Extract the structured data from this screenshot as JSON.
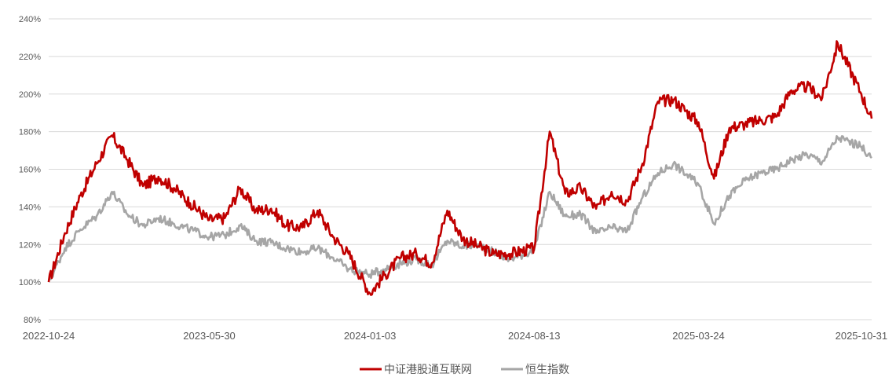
{
  "chart_data": {
    "type": "line",
    "title": "",
    "xlabel": "",
    "ylabel": "",
    "ylim": [
      80,
      240
    ],
    "y_unit": "%",
    "y_ticks": [
      80,
      100,
      120,
      140,
      160,
      180,
      200,
      220,
      240
    ],
    "y_tick_labels": [
      "80%",
      "100%",
      "120%",
      "140%",
      "160%",
      "180%",
      "200%",
      "220%",
      "240%"
    ],
    "x_tick_labels": [
      "2022-10-24",
      "2023-05-30",
      "2024-01-03",
      "2024-08-13",
      "2025-03-24",
      "2025-10-31"
    ],
    "grid": "horizontal",
    "legend_position": "bottom",
    "x": [
      "2022-10-24",
      "2022-11-15",
      "2022-12-06",
      "2022-12-28",
      "2023-01-18",
      "2023-02-08",
      "2023-03-01",
      "2023-03-22",
      "2023-04-12",
      "2023-05-04",
      "2023-05-30",
      "2023-06-20",
      "2023-07-11",
      "2023-08-01",
      "2023-08-22",
      "2023-09-12",
      "2023-10-03",
      "2023-10-24",
      "2023-11-14",
      "2023-12-05",
      "2024-01-03",
      "2024-01-24",
      "2024-02-14",
      "2024-03-06",
      "2024-03-27",
      "2024-04-17",
      "2024-05-08",
      "2024-05-29",
      "2024-06-19",
      "2024-07-10",
      "2024-08-13",
      "2024-09-03",
      "2024-09-24",
      "2024-10-15",
      "2024-11-05",
      "2024-11-26",
      "2024-12-17",
      "2025-01-07",
      "2025-01-28",
      "2025-02-18",
      "2025-03-24",
      "2025-04-14",
      "2025-05-05",
      "2025-05-26",
      "2025-06-16",
      "2025-07-07",
      "2025-07-28",
      "2025-08-18",
      "2025-09-08",
      "2025-09-29",
      "2025-10-31",
      "2025-11-14"
    ],
    "series": [
      {
        "name": "中证港股通互联网",
        "color": "#c00000",
        "values": [
          100,
          126,
          146,
          163,
          178,
          165,
          151,
          156,
          150,
          142,
          133,
          134,
          150,
          138,
          139,
          130,
          129,
          138,
          124,
          115,
          94,
          104,
          113,
          115,
          110,
          138,
          123,
          119,
          115,
          115,
          118,
          180,
          147,
          150,
          139,
          148,
          143,
          163,
          196,
          197,
          185,
          155,
          182,
          184,
          186,
          188,
          202,
          204,
          198,
          227,
          200,
          187
        ]
      },
      {
        "name": "恒生指数",
        "color": "#a6a6a6",
        "values": [
          100,
          118,
          128,
          135,
          148,
          136,
          130,
          134,
          131,
          128,
          124,
          125,
          130,
          122,
          121,
          118,
          116,
          118,
          113,
          107,
          104,
          107,
          110,
          112,
          109,
          122,
          119,
          120,
          116,
          112,
          117,
          148,
          135,
          136,
          126,
          129,
          127,
          145,
          158,
          163,
          152,
          131,
          146,
          154,
          158,
          160,
          165,
          168,
          164,
          177,
          172,
          166
        ]
      }
    ]
  }
}
